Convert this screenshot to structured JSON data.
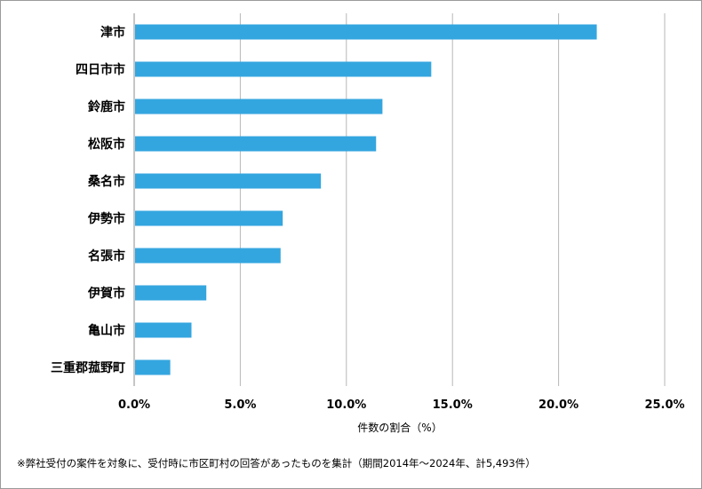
{
  "chart_data": {
    "type": "bar",
    "orientation": "horizontal",
    "categories": [
      "津市",
      "四日市市",
      "鈴鹿市",
      "松阪市",
      "桑名市",
      "伊勢市",
      "名張市",
      "伊賀市",
      "亀山市",
      "三重郡菰野町"
    ],
    "values": [
      21.8,
      14.0,
      11.7,
      11.4,
      8.8,
      7.0,
      6.9,
      3.4,
      2.7,
      1.7
    ],
    "xlabel": "件数の割合（%）",
    "ylabel": "",
    "xlim": [
      0,
      25
    ],
    "x_ticks": [
      0,
      5,
      10,
      15,
      20,
      25
    ],
    "x_tick_labels": [
      "0.0%",
      "5.0%",
      "10.0%",
      "15.0%",
      "20.0%",
      "25.0%"
    ],
    "grid": true,
    "bar_color": "#34a6df"
  },
  "footnote": "※弊社受付の案件を対象に、受付時に市区町村の回答があったものを集計（期間2014年～2024年、計5,493件）"
}
